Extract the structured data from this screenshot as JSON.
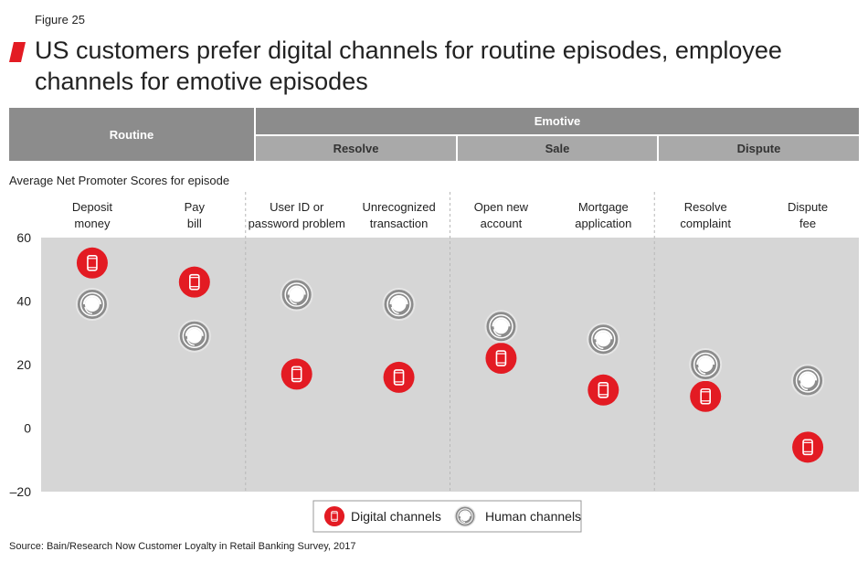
{
  "figure_label": "Figure 25",
  "title": "US customers prefer digital channels for routine episodes, employee channels for emotive episodes",
  "header": {
    "routine": "Routine",
    "emotive": "Emotive",
    "resolve": "Resolve",
    "sale": "Sale",
    "dispute": "Dispute"
  },
  "measure_label": "Average Net Promoter Scores for episode",
  "source": "Source: Bain/Research Now Customer Loyalty in Retail Banking Survey, 2017",
  "colors": {
    "digital": "#e31b23",
    "human": "#8c8c8c",
    "plot_bg": "#d6d6d6",
    "header_dark": "#8c8c8c",
    "header_light": "#a9a9a9"
  },
  "chart_data": {
    "type": "scatter",
    "categories": [
      [
        "Deposit",
        "money"
      ],
      [
        "Pay",
        "bill"
      ],
      [
        "User ID or",
        "password problem"
      ],
      [
        "Unrecognized",
        "transaction"
      ],
      [
        "Open new",
        "account"
      ],
      [
        "Mortgage",
        "application"
      ],
      [
        "Resolve",
        "complaint"
      ],
      [
        "Dispute",
        "fee"
      ]
    ],
    "series": [
      {
        "name": "Digital channels",
        "icon": "phone-icon",
        "values": [
          52,
          46,
          17,
          16,
          22,
          12,
          10,
          -6
        ]
      },
      {
        "name": "Human channels",
        "icon": "headset-icon",
        "values": [
          39,
          29,
          42,
          39,
          32,
          28,
          20,
          15
        ]
      }
    ],
    "y_ticks": [
      "60",
      "40",
      "20",
      "0",
      "–20"
    ],
    "ylim": [
      -20,
      60
    ],
    "legend_position": "bottom-center"
  }
}
